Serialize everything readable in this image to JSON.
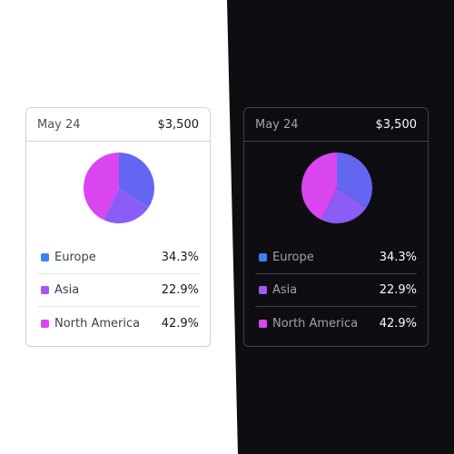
{
  "cards": [
    {
      "theme": "light",
      "date": "May 24",
      "total": "$3,500",
      "items": [
        {
          "label": "Europe",
          "percent": "34.3%",
          "value": 34.3,
          "color": "#3b82f6",
          "pie_color": "#6366f1"
        },
        {
          "label": "Asia",
          "percent": "22.9%",
          "value": 22.9,
          "color": "#a855f7",
          "pie_color": "#8b5cf6"
        },
        {
          "label": "North America",
          "percent": "42.9%",
          "value": 42.9,
          "color": "#d946ef",
          "pie_color": "#d946ef"
        }
      ]
    },
    {
      "theme": "dark",
      "date": "May 24",
      "total": "$3,500",
      "items": [
        {
          "label": "Europe",
          "percent": "34.3%",
          "value": 34.3,
          "color": "#3b82f6",
          "pie_color": "#6366f1"
        },
        {
          "label": "Asia",
          "percent": "22.9%",
          "value": 22.9,
          "color": "#a855f7",
          "pie_color": "#8b5cf6"
        },
        {
          "label": "North America",
          "percent": "42.9%",
          "value": 42.9,
          "color": "#d946ef",
          "pie_color": "#d946ef"
        }
      ]
    }
  ]
}
